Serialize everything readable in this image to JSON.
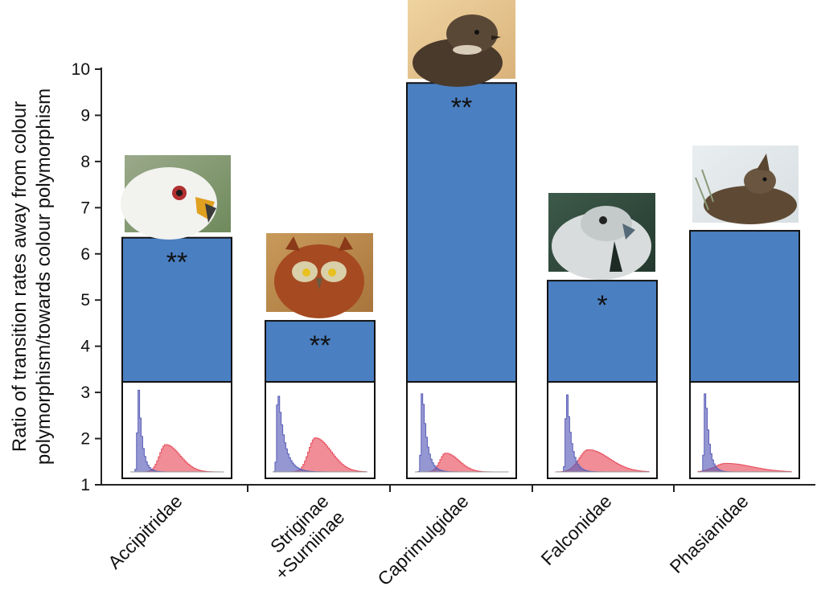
{
  "chart_data": {
    "type": "bar",
    "ylabel_lines": [
      "Ratio of transition rates away from colour",
      "polymorphism/towards colour polymorphism"
    ],
    "xlabel": "",
    "ylim": [
      1,
      10
    ],
    "yticks": [
      "1",
      "2",
      "3",
      "4",
      "5",
      "6",
      "7",
      "8",
      "9",
      "10"
    ],
    "categories": [
      {
        "lines": [
          "Accipitridae"
        ]
      },
      {
        "lines": [
          "Striginae",
          "+Surniinae"
        ]
      },
      {
        "lines": [
          "Caprimulgidae"
        ]
      },
      {
        "lines": [
          "Falconidae"
        ]
      },
      {
        "lines": [
          "Phasianidae"
        ]
      }
    ],
    "values": [
      6.35,
      4.55,
      9.7,
      5.42,
      6.5
    ],
    "significance": [
      "**",
      "**",
      "**",
      "*",
      ""
    ],
    "bird_photos": [
      "white-kite-photo",
      "screech-owl-photo",
      "nightjar-photo",
      "gyrfalcon-photo",
      "grouse-photo"
    ],
    "inset_histograms": {
      "series_colors": {
        "away": "#5a5fb8",
        "towards": "#e8505f"
      },
      "shapes": [
        {
          "blue_peak": 0.09,
          "blue_width": 0.04,
          "red_peak": 0.38,
          "red_width": 0.11,
          "red_height": 0.32
        },
        {
          "blue_peak": 0.05,
          "blue_width": 0.07,
          "red_peak": 0.45,
          "red_width": 0.12,
          "red_height": 0.4
        },
        {
          "blue_peak": 0.08,
          "blue_width": 0.05,
          "red_peak": 0.33,
          "red_width": 0.1,
          "red_height": 0.22
        },
        {
          "blue_peak": 0.12,
          "blue_width": 0.05,
          "red_peak": 0.35,
          "red_width": 0.16,
          "red_height": 0.26
        },
        {
          "blue_peak": 0.08,
          "blue_width": 0.04,
          "red_peak": 0.3,
          "red_width": 0.2,
          "red_height": 0.1
        }
      ]
    },
    "colors": {
      "bar": "#4a7fc1",
      "bar_border": "#111111",
      "axis": "#222222"
    }
  }
}
